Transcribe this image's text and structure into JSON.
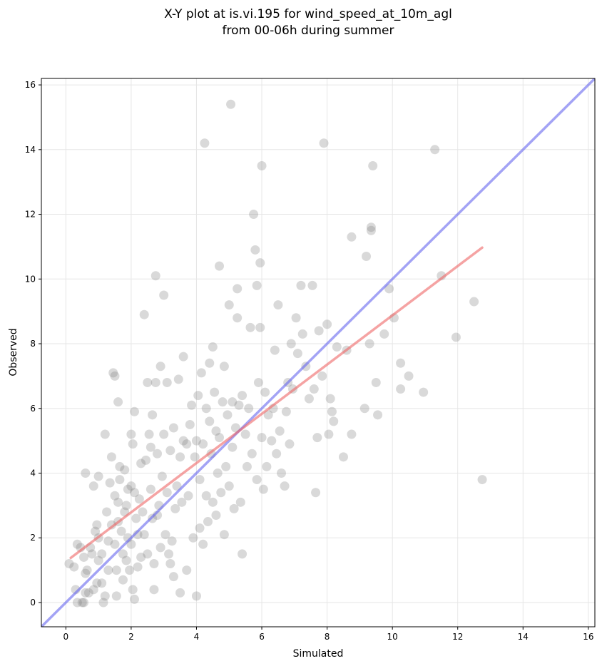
{
  "chart_data": {
    "type": "scatter",
    "title_lines": [
      "X-Y plot at is.vi.195 for wind_speed_at_10m_agl",
      "from 00-06h during summer"
    ],
    "xlabel": "Simulated",
    "ylabel": "Observed",
    "xlim": [
      -0.75,
      16.2
    ],
    "ylim": [
      -0.75,
      16.2
    ],
    "xticks": [
      0,
      2,
      4,
      6,
      8,
      10,
      12,
      14,
      16
    ],
    "yticks": [
      0,
      2,
      4,
      6,
      8,
      10,
      12,
      14,
      16
    ],
    "grid": true,
    "colors": {
      "points": "#808080",
      "identity_line": "#6666ee",
      "fit_line": "#ee6666",
      "grid": "#e6e6e6"
    },
    "identity_line": {
      "x": [
        -0.75,
        16.2
      ],
      "y": [
        -0.75,
        16.2
      ]
    },
    "fit_line": {
      "x": [
        0.15,
        12.75
      ],
      "y": [
        1.38,
        10.97
      ]
    },
    "points": [
      [
        0.1,
        1.2
      ],
      [
        0.25,
        1.1
      ],
      [
        0.3,
        0.4
      ],
      [
        0.35,
        0.0
      ],
      [
        0.35,
        1.8
      ],
      [
        0.45,
        1.7
      ],
      [
        0.5,
        0.0
      ],
      [
        0.55,
        1.4
      ],
      [
        0.55,
        0.0
      ],
      [
        0.6,
        0.3
      ],
      [
        0.6,
        0.9
      ],
      [
        0.65,
        1.0
      ],
      [
        0.6,
        4.0
      ],
      [
        0.7,
        0.3
      ],
      [
        0.75,
        1.7
      ],
      [
        0.8,
        1.5
      ],
      [
        0.85,
        0.4
      ],
      [
        0.85,
        3.6
      ],
      [
        0.9,
        2.2
      ],
      [
        0.95,
        2.4
      ],
      [
        0.95,
        0.6
      ],
      [
        1.0,
        1.3
      ],
      [
        1.0,
        2.0
      ],
      [
        1.0,
        3.9
      ],
      [
        1.1,
        1.5
      ],
      [
        1.1,
        0.6
      ],
      [
        1.15,
        0.0
      ],
      [
        1.2,
        0.2
      ],
      [
        1.2,
        5.2
      ],
      [
        1.25,
        2.8
      ],
      [
        1.3,
        1.9
      ],
      [
        1.3,
        1.0
      ],
      [
        1.35,
        3.7
      ],
      [
        1.4,
        2.4
      ],
      [
        1.4,
        4.5
      ],
      [
        1.45,
        7.1
      ],
      [
        1.5,
        3.3
      ],
      [
        1.5,
        1.8
      ],
      [
        1.5,
        7.0
      ],
      [
        1.55,
        1.0
      ],
      [
        1.55,
        0.2
      ],
      [
        1.6,
        3.1
      ],
      [
        1.6,
        2.5
      ],
      [
        1.6,
        6.2
      ],
      [
        1.65,
        3.8
      ],
      [
        1.65,
        4.2
      ],
      [
        1.7,
        2.2
      ],
      [
        1.75,
        1.5
      ],
      [
        1.75,
        0.7
      ],
      [
        1.8,
        2.8
      ],
      [
        1.8,
        4.1
      ],
      [
        1.85,
        3.0
      ],
      [
        1.85,
        1.3
      ],
      [
        1.9,
        2.0
      ],
      [
        1.9,
        3.5
      ],
      [
        1.95,
        1.0
      ],
      [
        2.0,
        5.2
      ],
      [
        2.0,
        3.6
      ],
      [
        2.0,
        1.8
      ],
      [
        2.05,
        0.4
      ],
      [
        2.05,
        4.9
      ],
      [
        2.1,
        3.4
      ],
      [
        2.1,
        5.9
      ],
      [
        2.1,
        0.1
      ],
      [
        2.15,
        2.6
      ],
      [
        2.2,
        2.1
      ],
      [
        2.2,
        1.1
      ],
      [
        2.25,
        3.2
      ],
      [
        2.3,
        4.3
      ],
      [
        2.3,
        1.4
      ],
      [
        2.35,
        2.8
      ],
      [
        2.4,
        2.1
      ],
      [
        2.4,
        8.9
      ],
      [
        2.45,
        4.4
      ],
      [
        2.5,
        1.5
      ],
      [
        2.5,
        6.8
      ],
      [
        2.55,
        5.2
      ],
      [
        2.6,
        3.5
      ],
      [
        2.6,
        4.8
      ],
      [
        2.65,
        2.6
      ],
      [
        2.65,
        5.8
      ],
      [
        2.7,
        1.2
      ],
      [
        2.7,
        0.4
      ],
      [
        2.75,
        6.8
      ],
      [
        2.75,
        10.1
      ],
      [
        2.8,
        4.6
      ],
      [
        2.8,
        2.7
      ],
      [
        2.85,
        3.0
      ],
      [
        2.9,
        7.3
      ],
      [
        2.9,
        1.7
      ],
      [
        2.95,
        3.9
      ],
      [
        3.0,
        9.5
      ],
      [
        3.0,
        5.2
      ],
      [
        3.05,
        2.1
      ],
      [
        3.1,
        3.4
      ],
      [
        3.1,
        6.8
      ],
      [
        3.15,
        1.5
      ],
      [
        3.2,
        4.7
      ],
      [
        3.2,
        1.2
      ],
      [
        3.25,
        1.9
      ],
      [
        3.3,
        5.4
      ],
      [
        3.3,
        0.8
      ],
      [
        3.35,
        2.9
      ],
      [
        3.4,
        3.6
      ],
      [
        3.45,
        6.9
      ],
      [
        3.5,
        4.5
      ],
      [
        3.5,
        0.3
      ],
      [
        3.55,
        3.1
      ],
      [
        3.6,
        5.0
      ],
      [
        3.6,
        7.6
      ],
      [
        3.7,
        4.9
      ],
      [
        3.7,
        1.0
      ],
      [
        3.75,
        3.3
      ],
      [
        3.8,
        5.5
      ],
      [
        3.85,
        6.1
      ],
      [
        3.9,
        2.0
      ],
      [
        3.95,
        4.5
      ],
      [
        4.0,
        5.0
      ],
      [
        4.0,
        0.2
      ],
      [
        4.05,
        6.4
      ],
      [
        4.1,
        3.8
      ],
      [
        4.1,
        2.3
      ],
      [
        4.15,
        7.1
      ],
      [
        4.2,
        4.9
      ],
      [
        4.2,
        1.8
      ],
      [
        4.25,
        14.2
      ],
      [
        4.3,
        3.3
      ],
      [
        4.3,
        6.0
      ],
      [
        4.35,
        2.5
      ],
      [
        4.4,
        5.6
      ],
      [
        4.4,
        7.4
      ],
      [
        4.45,
        4.6
      ],
      [
        4.5,
        3.1
      ],
      [
        4.5,
        7.9
      ],
      [
        4.55,
        6.5
      ],
      [
        4.6,
        2.7
      ],
      [
        4.6,
        5.3
      ],
      [
        4.65,
        4.0
      ],
      [
        4.7,
        10.4
      ],
      [
        4.7,
        5.1
      ],
      [
        4.75,
        3.4
      ],
      [
        4.8,
        6.2
      ],
      [
        4.85,
        7.3
      ],
      [
        4.85,
        2.1
      ],
      [
        4.9,
        4.2
      ],
      [
        4.95,
        5.8
      ],
      [
        5.0,
        9.2
      ],
      [
        5.0,
        3.6
      ],
      [
        5.05,
        15.4
      ],
      [
        5.1,
        4.8
      ],
      [
        5.1,
        6.2
      ],
      [
        5.15,
        2.9
      ],
      [
        5.2,
        5.4
      ],
      [
        5.25,
        9.7
      ],
      [
        5.25,
        8.8
      ],
      [
        5.3,
        6.1
      ],
      [
        5.35,
        3.1
      ],
      [
        5.4,
        6.4
      ],
      [
        5.4,
        1.5
      ],
      [
        5.5,
        5.2
      ],
      [
        5.55,
        4.2
      ],
      [
        5.6,
        6.0
      ],
      [
        5.65,
        8.5
      ],
      [
        5.7,
        4.6
      ],
      [
        5.75,
        12.0
      ],
      [
        5.8,
        10.9
      ],
      [
        5.85,
        9.8
      ],
      [
        5.85,
        3.8
      ],
      [
        5.9,
        6.8
      ],
      [
        5.95,
        10.5
      ],
      [
        5.95,
        8.5
      ],
      [
        6.0,
        13.5
      ],
      [
        6.0,
        5.1
      ],
      [
        6.05,
        3.5
      ],
      [
        6.1,
        6.5
      ],
      [
        6.15,
        4.2
      ],
      [
        6.2,
        5.8
      ],
      [
        6.3,
        5.0
      ],
      [
        6.35,
        6.0
      ],
      [
        6.4,
        7.8
      ],
      [
        6.45,
        4.6
      ],
      [
        6.5,
        9.2
      ],
      [
        6.55,
        5.3
      ],
      [
        6.6,
        4.0
      ],
      [
        6.7,
        3.6
      ],
      [
        6.75,
        5.9
      ],
      [
        6.8,
        6.8
      ],
      [
        6.85,
        4.9
      ],
      [
        6.9,
        8.0
      ],
      [
        6.95,
        6.6
      ],
      [
        7.05,
        8.8
      ],
      [
        7.1,
        7.7
      ],
      [
        7.2,
        9.8
      ],
      [
        7.25,
        8.3
      ],
      [
        7.35,
        7.3
      ],
      [
        7.45,
        6.3
      ],
      [
        7.55,
        9.8
      ],
      [
        7.6,
        6.6
      ],
      [
        7.65,
        3.4
      ],
      [
        7.7,
        5.1
      ],
      [
        7.75,
        8.4
      ],
      [
        7.85,
        7.0
      ],
      [
        7.9,
        14.2
      ],
      [
        8.0,
        8.6
      ],
      [
        8.05,
        5.2
      ],
      [
        8.1,
        6.3
      ],
      [
        8.15,
        5.9
      ],
      [
        8.2,
        5.6
      ],
      [
        8.3,
        7.9
      ],
      [
        8.5,
        4.5
      ],
      [
        8.6,
        7.8
      ],
      [
        8.75,
        11.3
      ],
      [
        8.75,
        5.2
      ],
      [
        9.15,
        6.0
      ],
      [
        9.2,
        10.7
      ],
      [
        9.3,
        8.0
      ],
      [
        9.35,
        11.5
      ],
      [
        9.35,
        11.6
      ],
      [
        9.4,
        13.5
      ],
      [
        9.5,
        6.8
      ],
      [
        9.55,
        5.8
      ],
      [
        9.75,
        8.3
      ],
      [
        9.9,
        9.7
      ],
      [
        10.05,
        8.8
      ],
      [
        10.25,
        7.4
      ],
      [
        10.25,
        6.6
      ],
      [
        10.5,
        7.0
      ],
      [
        10.95,
        6.5
      ],
      [
        11.3,
        14.0
      ],
      [
        11.5,
        10.1
      ],
      [
        11.95,
        8.2
      ],
      [
        12.5,
        9.3
      ],
      [
        12.75,
        3.8
      ]
    ]
  }
}
